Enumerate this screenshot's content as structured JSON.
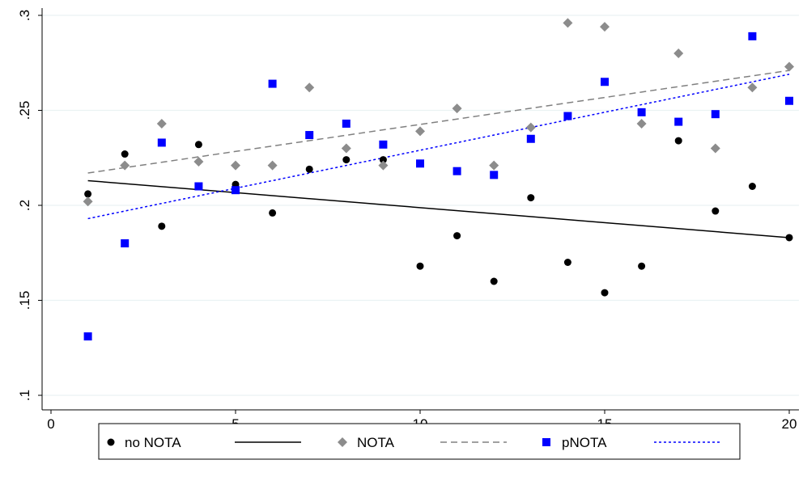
{
  "chart_data": {
    "type": "scatter",
    "title": "",
    "xlabel": "",
    "ylabel": "",
    "xlim": [
      0,
      20
    ],
    "ylim": [
      0.1,
      0.3
    ],
    "x_ticks": [
      0,
      5,
      10,
      15,
      20
    ],
    "x_tick_labels": [
      "0",
      "5",
      "10",
      "15",
      "20"
    ],
    "y_ticks": [
      0.1,
      0.15,
      0.2,
      0.25,
      0.3
    ],
    "y_tick_labels": [
      ".1",
      ".15",
      ".2",
      ".25",
      ".3"
    ],
    "grid": "horizontal",
    "legend_position": "bottom",
    "x": [
      1,
      2,
      3,
      4,
      5,
      6,
      7,
      8,
      9,
      10,
      11,
      12,
      13,
      14,
      15,
      16,
      17,
      18,
      19,
      20
    ],
    "series": [
      {
        "name": "no NOTA",
        "marker": "circle",
        "color": "#000000",
        "values": [
          0.206,
          0.227,
          0.189,
          0.232,
          0.211,
          0.196,
          0.219,
          0.224,
          0.224,
          0.168,
          0.184,
          0.16,
          0.204,
          0.17,
          0.154,
          0.168,
          0.234,
          0.197,
          0.21,
          0.183
        ],
        "fit": {
          "style": "solid",
          "color": "#000000",
          "x": [
            1,
            20
          ],
          "y": [
            0.213,
            0.183
          ]
        }
      },
      {
        "name": "NOTA",
        "marker": "diamond",
        "color": "#8c8c8c",
        "values": [
          0.202,
          0.221,
          0.243,
          0.223,
          0.221,
          0.221,
          0.262,
          0.23,
          0.221,
          0.239,
          0.251,
          0.221,
          0.241,
          0.296,
          0.294,
          0.243,
          0.28,
          0.23,
          0.262,
          0.273
        ],
        "fit": {
          "style": "dashed",
          "color": "#808080",
          "x": [
            1,
            20
          ],
          "y": [
            0.217,
            0.271
          ]
        }
      },
      {
        "name": "pNOTA",
        "marker": "square",
        "color": "#0000ff",
        "values": [
          0.131,
          0.18,
          0.233,
          0.21,
          0.208,
          0.264,
          0.237,
          0.243,
          0.232,
          0.222,
          0.218,
          0.216,
          0.235,
          0.247,
          0.265,
          0.249,
          0.244,
          0.248,
          0.289,
          0.255
        ],
        "fit": {
          "style": "dotted",
          "color": "#0000ff",
          "x": [
            1,
            20
          ],
          "y": [
            0.193,
            0.269
          ]
        }
      }
    ]
  }
}
